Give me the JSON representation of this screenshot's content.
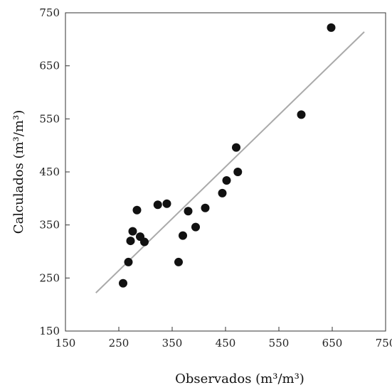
{
  "chart_data": {
    "type": "scatter",
    "title": "",
    "xlabel": "Observados (m³/m³)",
    "ylabel": "Calculados (m³/m³)",
    "xlim": [
      150,
      750
    ],
    "ylim": [
      150,
      750
    ],
    "xticks": [
      150,
      250,
      350,
      450,
      550,
      650,
      750
    ],
    "yticks": [
      150,
      250,
      350,
      450,
      550,
      650,
      750
    ],
    "grid": false,
    "series": [
      {
        "x": [
          258,
          268,
          272,
          276,
          284,
          290,
          298,
          323,
          340,
          362,
          370,
          380,
          394,
          412,
          444,
          452,
          470,
          473,
          592,
          648
        ],
        "y": [
          240,
          280,
          320,
          338,
          378,
          328,
          318,
          388,
          390,
          280,
          330,
          376,
          346,
          382,
          410,
          434,
          496,
          450,
          558,
          722
        ],
        "color": "#111111"
      }
    ],
    "fit_line": {
      "x": [
        207,
        710
      ],
      "y": [
        222,
        714
      ],
      "color": "#aaaaaa"
    }
  }
}
